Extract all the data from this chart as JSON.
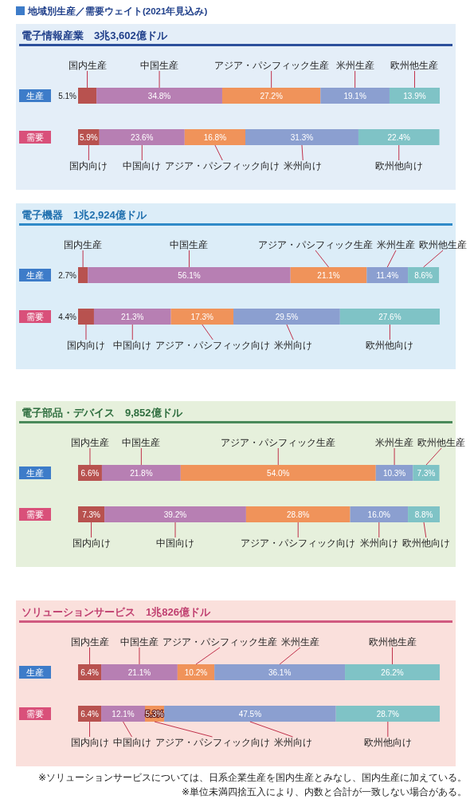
{
  "chart_data": [
    {
      "type": "bar",
      "orientation": "horizontal",
      "stacked": true,
      "title": "電子情報産業　3兆3,602億ドル",
      "categories": [
        "生産",
        "需要"
      ],
      "series": [
        {
          "color": "#b8524f",
          "values": [
            5.1,
            5.9
          ],
          "value_labels": [
            "5.1%",
            "5.9%"
          ]
        },
        {
          "color": "#b77fb3",
          "values": [
            34.8,
            23.6
          ],
          "value_labels": [
            "34.8%",
            "23.6%"
          ]
        },
        {
          "color": "#f0935a",
          "values": [
            27.2,
            16.8
          ],
          "value_labels": [
            "27.2%",
            "16.8%"
          ]
        },
        {
          "color": "#8b9fd0",
          "values": [
            19.1,
            31.3
          ],
          "value_labels": [
            "19.1%",
            "31.3%"
          ]
        },
        {
          "color": "#7fc3c6",
          "values": [
            13.9,
            22.4
          ],
          "value_labels": [
            "13.9%",
            "22.4%"
          ]
        }
      ],
      "annotations": [
        "地域別生産／需要ウェイト(2021年見込み)",
        "国内生産",
        "中国生産",
        "アジア・パシフィック生産",
        "米州生産",
        "欧州他生産",
        "国内向け",
        "中国向け",
        "アジア・パシフィック向け",
        "米州向け",
        "欧州他向け"
      ]
    },
    {
      "type": "bar",
      "orientation": "horizontal",
      "stacked": true,
      "title": "電子機器　1兆2,924億ドル",
      "categories": [
        "生産",
        "需要"
      ],
      "series": [
        {
          "color": "#b8524f",
          "values": [
            2.7,
            4.4
          ],
          "value_labels": [
            "2.7%",
            "4.4%"
          ]
        },
        {
          "color": "#b77fb3",
          "values": [
            56.1,
            21.3
          ],
          "value_labels": [
            "56.1%",
            "21.3%"
          ]
        },
        {
          "color": "#f0935a",
          "values": [
            21.1,
            17.3
          ],
          "value_labels": [
            "21.1%",
            "17.3%"
          ]
        },
        {
          "color": "#8b9fd0",
          "values": [
            11.4,
            29.5
          ],
          "value_labels": [
            "11.4%",
            "29.5%"
          ]
        },
        {
          "color": "#7fc3c6",
          "values": [
            8.6,
            27.6
          ],
          "value_labels": [
            "8.6%",
            "27.6%"
          ]
        }
      ],
      "annotations": [
        "国内生産",
        "中国生産",
        "アジア・パシフィック生産",
        "米州生産",
        "欧州他生産",
        "国内向け",
        "中国向け",
        "アジア・パシフィック向け",
        "米州向け",
        "欧州他向け"
      ]
    },
    {
      "type": "bar",
      "orientation": "horizontal",
      "stacked": true,
      "title": "電子部品・デバイス　9,852億ドル",
      "categories": [
        "生産",
        "需要"
      ],
      "series": [
        {
          "color": "#b8524f",
          "values": [
            6.6,
            7.3
          ],
          "value_labels": [
            "6.6%",
            "7.3%"
          ]
        },
        {
          "color": "#b77fb3",
          "values": [
            21.8,
            39.2
          ],
          "value_labels": [
            "21.8%",
            "39.2%"
          ]
        },
        {
          "color": "#f0935a",
          "values": [
            54.0,
            28.8
          ],
          "value_labels": [
            "54.0%",
            "28.8%"
          ]
        },
        {
          "color": "#8b9fd0",
          "values": [
            10.3,
            16.0
          ],
          "value_labels": [
            "10.3%",
            "16.0%"
          ]
        },
        {
          "color": "#7fc3c6",
          "values": [
            7.3,
            8.8
          ],
          "value_labels": [
            "7.3%",
            "8.8%"
          ]
        }
      ],
      "annotations": [
        "国内生産",
        "中国生産",
        "アジア・パシフィック生産",
        "米州生産",
        "欧州他生産",
        "国内向け",
        "中国向け",
        "アジア・パシフィック向け",
        "米州向け",
        "欧州他向け"
      ]
    },
    {
      "type": "bar",
      "orientation": "horizontal",
      "stacked": true,
      "title": "ソリューションサービス　1兆826億ドル",
      "categories": [
        "生産",
        "需要"
      ],
      "series": [
        {
          "color": "#b8524f",
          "values": [
            6.4,
            6.4
          ],
          "value_labels": [
            "6.4%",
            "6.4%"
          ]
        },
        {
          "color": "#b77fb3",
          "values": [
            21.1,
            12.1
          ],
          "value_labels": [
            "21.1%",
            "12.1%"
          ]
        },
        {
          "color": "#f0935a",
          "values": [
            10.2,
            5.3
          ],
          "value_labels": [
            "10.2%",
            "5.3%"
          ]
        },
        {
          "color": "#8b9fd0",
          "values": [
            36.1,
            47.5
          ],
          "value_labels": [
            "36.1%",
            "47.5%"
          ]
        },
        {
          "color": "#7fc3c6",
          "values": [
            26.2,
            28.7
          ],
          "value_labels": [
            "26.2%",
            "28.7%"
          ]
        }
      ],
      "annotations": [
        "国内生産",
        "中国生産",
        "アジア・パシフィック生産",
        "米州生産",
        "欧州他生産",
        "国内向け",
        "中国向け",
        "アジア・パシフィック向け",
        "米州向け",
        "欧州他向け",
        "※ソリューションサービスについては、日系企業生産を国内生産とみなし、国内生産に加えている。",
        "※単位未満四捨五入により、内数と合計が一致しない場合がある。"
      ]
    }
  ]
}
